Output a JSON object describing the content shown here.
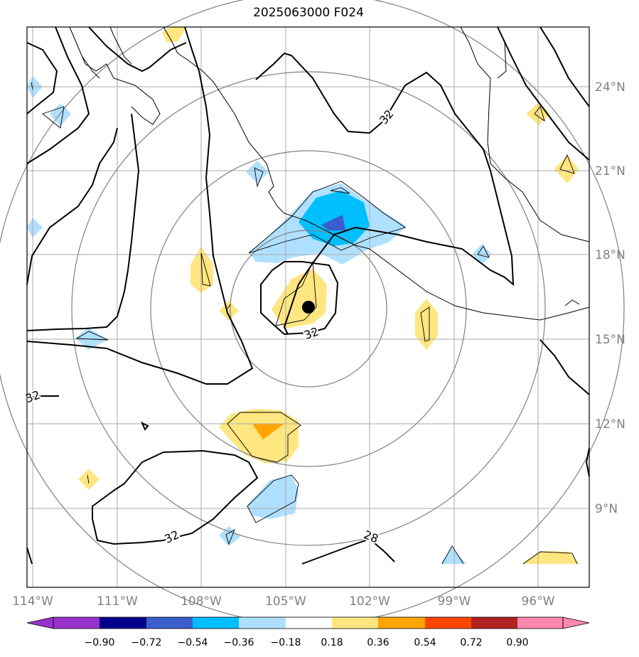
{
  "title": "2025063000 F024",
  "map": {
    "lon_ticks": [
      "114°W",
      "111°W",
      "108°W",
      "105°W",
      "102°W",
      "99°W",
      "96°W"
    ],
    "lat_ticks": [
      "24°N",
      "21°N",
      "18°N",
      "15°N",
      "12°N",
      "9°N"
    ],
    "contour_labels": [
      "32",
      "32",
      "32",
      "32",
      "28"
    ],
    "storm_center": {
      "lon": -104.1,
      "lat": 16.2
    },
    "colors": {
      "contour": "#000000",
      "grid": "#aaaaaa",
      "range_rings": "#808080",
      "tick_label": "#808080"
    }
  },
  "colorbar": {
    "tick_labels": [
      "−0.90",
      "−0.72",
      "−0.54",
      "−0.36",
      "−0.18",
      "0.18",
      "0.36",
      "0.54",
      "0.72",
      "0.90"
    ],
    "colors": [
      "#9932cc",
      "#00008b",
      "#3a5fcd",
      "#00bfff",
      "#b0e0ff",
      "#ffffff",
      "#ffe680",
      "#ffa500",
      "#ff4500",
      "#b22222",
      "#ff88b0"
    ]
  }
}
